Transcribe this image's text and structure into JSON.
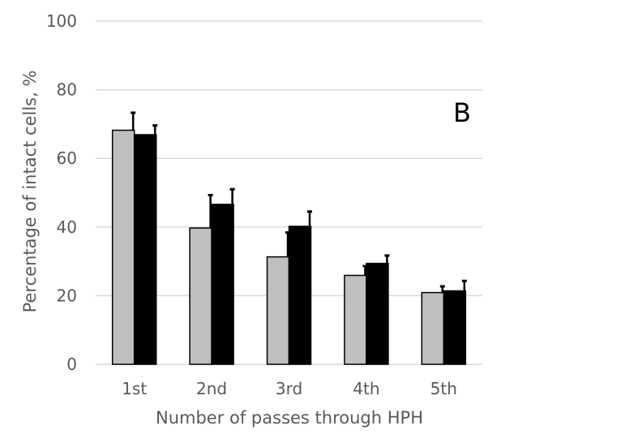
{
  "chart_data": {
    "type": "bar",
    "categories": [
      "1st",
      "2nd",
      "3rd",
      "4th",
      "5th"
    ],
    "series": [
      {
        "values": [
          68.2,
          39.7,
          31.3,
          25.9,
          20.9
        ],
        "errors": [
          5.1,
          9.6,
          7.1,
          2.7,
          1.8
        ],
        "color": "#bfbfbf"
      },
      {
        "values": [
          66.9,
          46.6,
          40.2,
          29.4,
          21.4
        ],
        "errors": [
          2.7,
          4.4,
          4.3,
          2.3,
          2.9
        ],
        "color": "#000000"
      }
    ],
    "xlabel": "Number of passes through HPH",
    "ylabel": "Percentage of intact cells, %",
    "ylim": [
      0,
      100
    ],
    "yticks": [
      0,
      20,
      40,
      60,
      80,
      100
    ],
    "annotation": "B",
    "grid": true,
    "gridColor": "#d9d9d9"
  }
}
